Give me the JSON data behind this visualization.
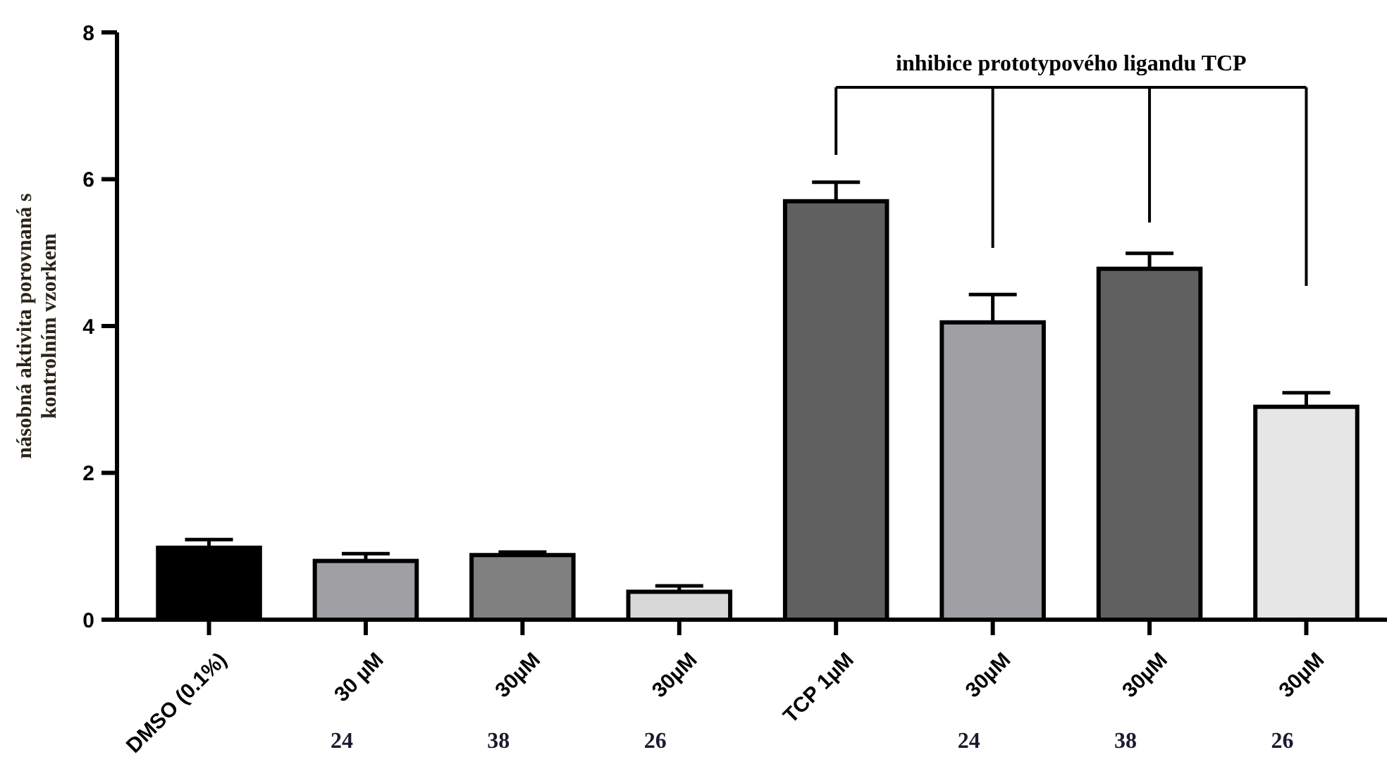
{
  "chart_data": {
    "type": "bar",
    "ylabel": "násobná aktivita porovnaná s\nkontrolním vzorkem",
    "categories": [
      "DMSO (0.1%)",
      "30 µM\n24",
      "30µM\n38",
      "30µM\n26",
      "TCP 1µM",
      "30µM\n24",
      "30µM\n38",
      "30µM\n26"
    ],
    "values": [
      0.98,
      0.8,
      0.88,
      0.38,
      5.7,
      4.05,
      4.78,
      2.9
    ],
    "errors": [
      0.11,
      0.1,
      0.04,
      0.08,
      0.26,
      0.38,
      0.21,
      0.19
    ],
    "colors": [
      "#000000",
      "#a0a0a4",
      "#808080",
      "#d8d8d8",
      "#606060",
      "#a0a0a4",
      "#606060",
      "#e6e6e6"
    ],
    "ylim": [
      0,
      8
    ],
    "yticks": [
      0,
      2,
      4,
      6,
      8
    ],
    "grid": false,
    "annotations": [
      "inhibice prototypového ligandu TCP"
    ]
  }
}
